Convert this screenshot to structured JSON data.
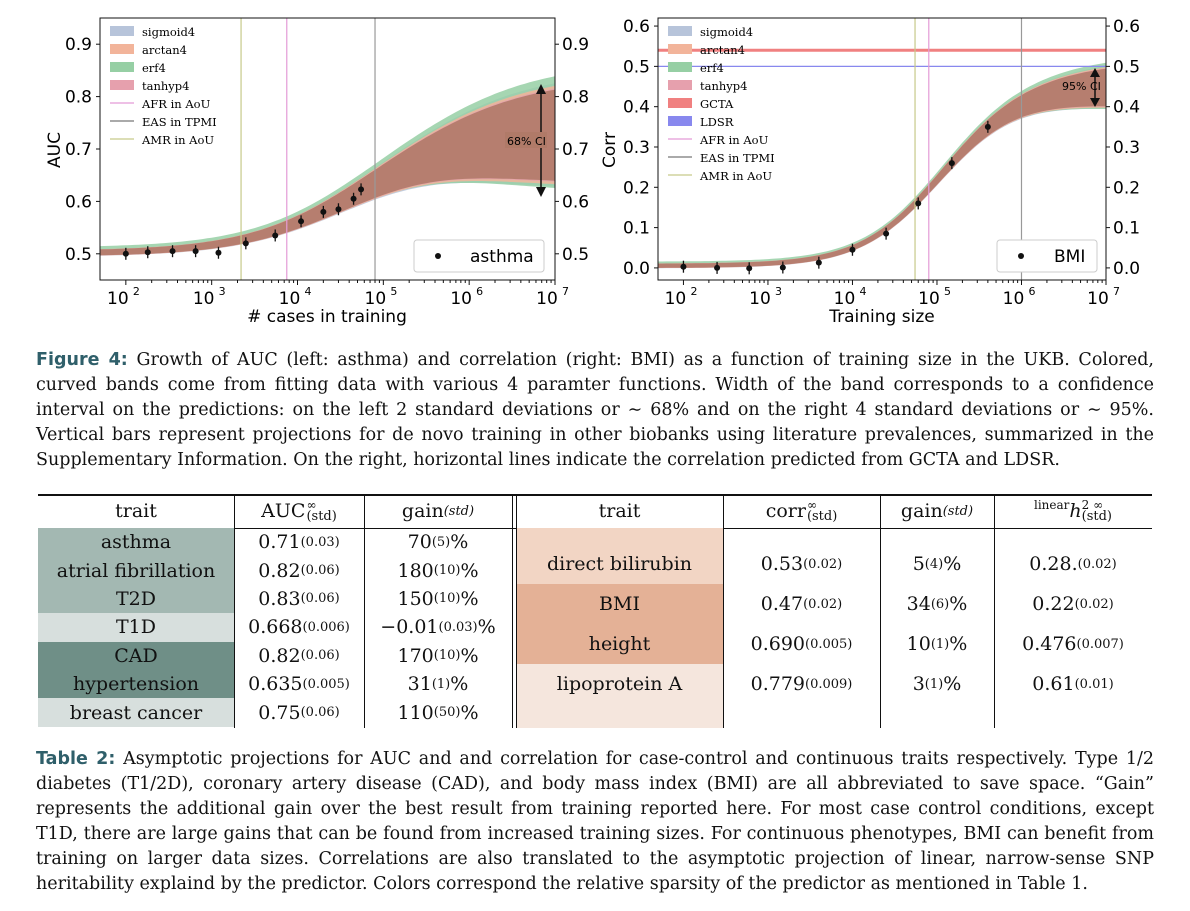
{
  "colors": {
    "sigmoid4": "#b7c4da",
    "arctan4": "#f2b49a",
    "erf4": "#96cfa4",
    "tanhyp4": "#e6a0ad",
    "band": "#b07a68",
    "gcta": "#f08080",
    "ldsr": "#8888ee",
    "afr": "#e49bd6",
    "eas": "#999999",
    "amr": "#c6c98a",
    "caption_label": "#2f5f6a",
    "row_dark": "#6f8f87",
    "row_mid": "#a3b8b2",
    "row_light": "#d7dfdd",
    "row_peach_light": "#f5e6dd",
    "row_peach_mid": "#f2d5c4",
    "row_peach_dark": "#e4b196"
  },
  "left_plot": {
    "ylabel": "AUC",
    "xlabel": "# cases in training",
    "annotation": "68% CI",
    "data_legend": "asthma",
    "yticks": [
      "0.5",
      "0.6",
      "0.7",
      "0.8",
      "0.9"
    ],
    "xticks": [
      "10",
      "10",
      "10",
      "10",
      "10",
      "10"
    ],
    "xexps": [
      "2",
      "3",
      "4",
      "5",
      "6",
      "7"
    ],
    "legend": [
      "sigmoid4",
      "arctan4",
      "erf4",
      "tanhyp4",
      "AFR in AoU",
      "EAS in TPMI",
      "AMR in AoU"
    ]
  },
  "right_plot": {
    "ylabel": "Corr",
    "xlabel": "Training size",
    "annotation": "95% CI",
    "data_legend": "BMI",
    "yticks": [
      "0.0",
      "0.1",
      "0.2",
      "0.3",
      "0.4",
      "0.5",
      "0.6"
    ],
    "xticks": [
      "10",
      "10",
      "10",
      "10",
      "10",
      "10"
    ],
    "xexps": [
      "2",
      "3",
      "4",
      "5",
      "6",
      "7"
    ],
    "legend": [
      "sigmoid4",
      "arctan4",
      "erf4",
      "tanhyp4",
      "GCTA",
      "LDSR",
      "AFR in AoU",
      "EAS in TPMI",
      "AMR in AoU"
    ]
  },
  "chart_data": [
    {
      "type": "scatter",
      "ylabel": "AUC",
      "xlabel": "# cases in training",
      "xscale": "log",
      "xlim": [
        50,
        10000000
      ],
      "ylim": [
        0.45,
        0.95
      ],
      "series": [
        {
          "name": "asthma",
          "x": [
            100,
            180,
            350,
            650,
            1200,
            2500,
            5500,
            11000,
            20000,
            30000,
            45000,
            55000
          ],
          "y": [
            0.5,
            0.503,
            0.505,
            0.505,
            0.502,
            0.52,
            0.535,
            0.562,
            0.58,
            0.585,
            0.605,
            0.623
          ]
        }
      ],
      "vertical_lines": [
        {
          "name": "AMR in AoU",
          "x": 2200
        },
        {
          "name": "AFR in AoU",
          "x": 7500
        },
        {
          "name": "EAS in TPMI",
          "x": 80000
        }
      ],
      "band_68ci": {
        "x": [
          1000000,
          10000000
        ],
        "upper": [
          0.79,
          0.84
        ],
        "lower": [
          0.615,
          0.62
        ]
      },
      "legend_position": "top-left"
    },
    {
      "type": "scatter",
      "ylabel": "Corr",
      "xlabel": "Training size",
      "xscale": "log",
      "xlim": [
        50,
        10000000
      ],
      "ylim": [
        -0.03,
        0.62
      ],
      "series": [
        {
          "name": "BMI",
          "x": [
            100,
            250,
            600,
            1500,
            4000,
            10000,
            25000,
            60000,
            150000,
            400000
          ],
          "y": [
            0.003,
            0.0,
            -0.001,
            0.001,
            0.013,
            0.045,
            0.085,
            0.16,
            0.26,
            0.35
          ]
        }
      ],
      "horizontal_lines": [
        {
          "name": "GCTA",
          "y": 0.54
        },
        {
          "name": "LDSR",
          "y": 0.5
        }
      ],
      "vertical_lines": [
        {
          "name": "AMR in AoU",
          "x": 55000
        },
        {
          "name": "AFR in AoU",
          "x": 80000
        },
        {
          "name": "EAS in TPMI",
          "x": 1000000
        }
      ],
      "band_95ci": {
        "x": [
          1000000,
          10000000
        ],
        "upper": [
          0.5,
          0.53
        ],
        "lower": [
          0.385,
          0.395
        ]
      },
      "legend_position": "top-left"
    }
  ],
  "figure_caption": {
    "label": "Figure 4:",
    "text": " Growth of AUC (left: asthma) and correlation (right: BMI) as a function of training size in the UKB. Colored, curved bands come from fitting data with various 4 paramter functions. Width of the band corresponds to a confidence interval on the predictions: on the left 2 standard deviations or ∼ 68% and on the right 4 standard deviations or ∼ 95%. Vertical bars represent projections for de novo training in other biobanks using literature prevalences, summarized in the Supplementary Information. On the right, horizontal lines indicate the correlation predicted from GCTA and LDSR."
  },
  "table": {
    "headers": {
      "trait_left": "trait",
      "auc": "AUC",
      "auc_sup": "∞",
      "auc_sub": "(std)",
      "gain_left": "gain",
      "gain_sub": "(std)",
      "trait_right": "trait",
      "corr": "corr",
      "corr_sup": "∞",
      "corr_sub": "(std)",
      "gain_right": "gain",
      "h2_prefix": "linear",
      "h2": "h",
      "h2_sup": "2 ∞",
      "h2_sub": "(std)"
    },
    "case_control": [
      {
        "trait": "asthma",
        "auc": "0.71",
        "auc_std": "(0.03)",
        "gain": "70",
        "gain_std": "(5)",
        "pct": "%"
      },
      {
        "trait": "atrial fibrillation",
        "auc": "0.82",
        "auc_std": "(0.06)",
        "gain": "180",
        "gain_std": "(10)",
        "pct": "%"
      },
      {
        "trait": "T2D",
        "auc": "0.83",
        "auc_std": "(0.06)",
        "gain": "150",
        "gain_std": "(10)",
        "pct": "%"
      },
      {
        "trait": "T1D",
        "auc": "0.668",
        "auc_std": "(0.006)",
        "gain": "−0.01",
        "gain_std": "(0.03)",
        "pct": "%"
      },
      {
        "trait": "CAD",
        "auc": "0.82",
        "auc_std": "(0.06)",
        "gain": "170",
        "gain_std": "(10)",
        "pct": "%"
      },
      {
        "trait": "hypertension",
        "auc": "0.635",
        "auc_std": "(0.005)",
        "gain": "31",
        "gain_std": "(1)",
        "pct": "%"
      },
      {
        "trait": "breast cancer",
        "auc": "0.75",
        "auc_std": "(0.06)",
        "gain": "110",
        "gain_std": "(50)",
        "pct": "%"
      }
    ],
    "continuous": [
      {
        "trait": "direct bilirubin",
        "corr": "0.53",
        "corr_std": "(0.02)",
        "gain": "5",
        "gain_std": "(4)",
        "pct": "%",
        "h2": "0.28.",
        "h2_std": "(0.02)"
      },
      {
        "trait": "BMI",
        "corr": "0.47",
        "corr_std": "(0.02)",
        "gain": "34",
        "gain_std": "(6)",
        "pct": "%",
        "h2": "0.22",
        "h2_std": "(0.02)"
      },
      {
        "trait": "height",
        "corr": "0.690",
        "corr_std": "(0.005)",
        "gain": "10",
        "gain_std": "(1)",
        "pct": "%",
        "h2": "0.476",
        "h2_std": "(0.007)"
      },
      {
        "trait": "lipoprotein A",
        "corr": "0.779",
        "corr_std": "(0.009)",
        "gain": "3",
        "gain_std": "(1)",
        "pct": "%",
        "h2": "0.61",
        "h2_std": "(0.01)"
      }
    ]
  },
  "table_caption": {
    "label": "Table 2:",
    "text": " Asymptotic projections for AUC and and correlation for case-control and continuous traits respectively. Type 1/2 diabetes (T1/2D), coronary artery disease (CAD), and body mass index (BMI) are all abbreviated to save space. “Gain” represents the additional gain over the best result from training reported here. For most case control conditions, except T1D, there are large gains that can be found from increased training sizes. For continuous phenotypes, BMI can benefit from training on larger data sizes. Correlations are also translated to the asymptotic projection of linear, narrow-sense SNP heritability explaind by the predictor. Colors correspond the relative sparsity of the predictor as mentioned in Table 1."
  }
}
